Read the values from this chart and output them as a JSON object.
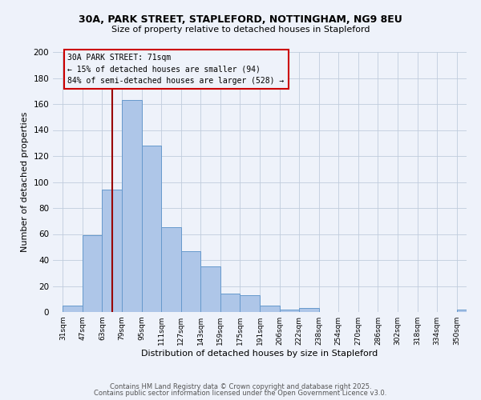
{
  "title_line1": "30A, PARK STREET, STAPLEFORD, NOTTINGHAM, NG9 8EU",
  "title_line2": "Size of property relative to detached houses in Stapleford",
  "xlabel": "Distribution of detached houses by size in Stapleford",
  "ylabel": "Number of detached properties",
  "bar_labels": [
    "31sqm",
    "47sqm",
    "63sqm",
    "79sqm",
    "95sqm",
    "111sqm",
    "127sqm",
    "143sqm",
    "159sqm",
    "175sqm",
    "191sqm",
    "206sqm",
    "222sqm",
    "238sqm",
    "254sqm",
    "270sqm",
    "286sqm",
    "302sqm",
    "318sqm",
    "334sqm",
    "350sqm"
  ],
  "bar_values": [
    5,
    59,
    94,
    163,
    128,
    65,
    47,
    35,
    14,
    13,
    5,
    2,
    3,
    0,
    0,
    0,
    0,
    0,
    0,
    0,
    2
  ],
  "bar_color": "#aec6e8",
  "bar_edgecolor": "#6699cc",
  "vline_color": "#990000",
  "annotation_title": "30A PARK STREET: 71sqm",
  "annotation_line1": "← 15% of detached houses are smaller (94)",
  "annotation_line2": "84% of semi-detached houses are larger (528) →",
  "annotation_box_edgecolor": "#cc0000",
  "ylim": [
    0,
    200
  ],
  "yticks": [
    0,
    20,
    40,
    60,
    80,
    100,
    120,
    140,
    160,
    180,
    200
  ],
  "footer_line1": "Contains HM Land Registry data © Crown copyright and database right 2025.",
  "footer_line2": "Contains public sector information licensed under the Open Government Licence v3.0.",
  "bg_color": "#eef2fa",
  "grid_color": "#c0ccdd"
}
